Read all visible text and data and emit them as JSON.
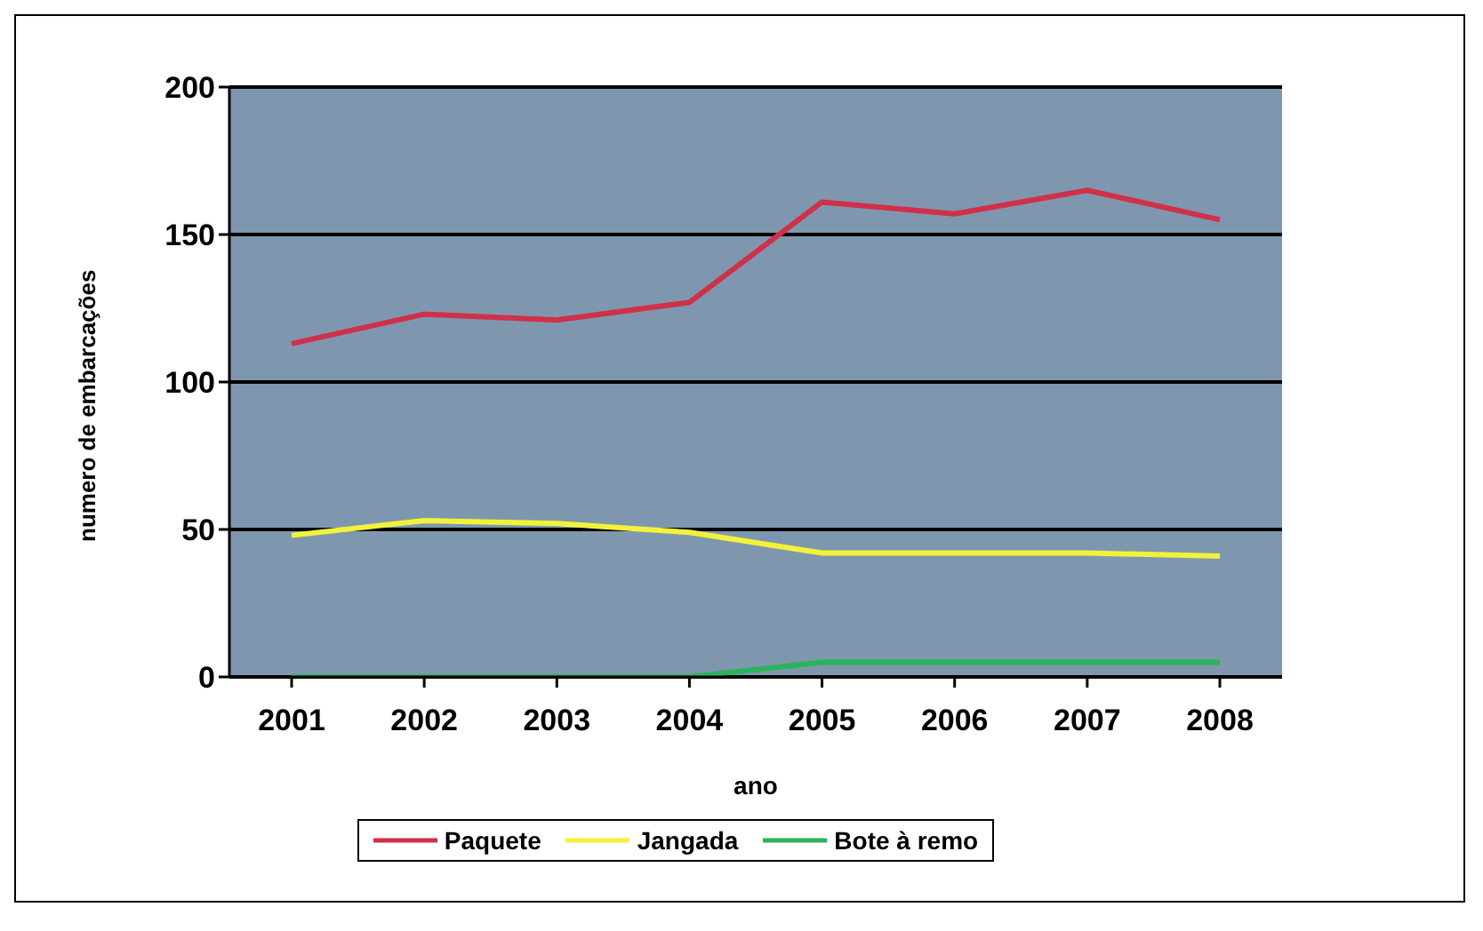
{
  "chart_data": {
    "type": "line",
    "xlabel": "ano",
    "ylabel": "numero de embarcações",
    "categories": [
      "2001",
      "2002",
      "2003",
      "2004",
      "2005",
      "2006",
      "2007",
      "2008"
    ],
    "series": [
      {
        "name": "Paquete",
        "color": "#d0304a",
        "values": [
          113,
          123,
          121,
          127,
          161,
          157,
          165,
          155
        ]
      },
      {
        "name": "Jangada",
        "color": "#f2f23a",
        "values": [
          48,
          53,
          52,
          49,
          42,
          42,
          42,
          41
        ]
      },
      {
        "name": "Bote à remo",
        "color": "#2ab45a",
        "values": [
          0,
          0,
          0,
          0,
          5,
          5,
          5,
          5
        ]
      }
    ],
    "ylim": [
      0,
      200
    ],
    "yticks": [
      0,
      50,
      100,
      150,
      200
    ],
    "grid": "y",
    "legend": "bottom",
    "marker": "none",
    "line_style": "solid"
  }
}
